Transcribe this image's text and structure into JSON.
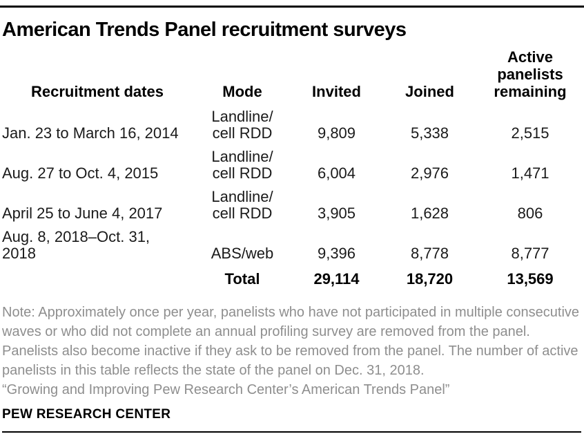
{
  "title": "American Trends Panel recruitment surveys",
  "table": {
    "columns": {
      "dates": "Recruitment dates",
      "mode": "Mode",
      "invited": "Invited",
      "joined": "Joined",
      "remaining": "Active\npanelists\nremaining"
    },
    "rows": [
      {
        "dates": "Jan. 23 to March 16, 2014",
        "mode": "Landline/\ncell RDD",
        "invited": "9,809",
        "joined": "5,338",
        "remaining": "2,515"
      },
      {
        "dates": "Aug. 27 to Oct. 4, 2015",
        "mode": "Landline/\ncell RDD",
        "invited": "6,004",
        "joined": "2,976",
        "remaining": "1,471"
      },
      {
        "dates": "April 25 to June 4, 2017",
        "mode": "Landline/\ncell RDD",
        "invited": "3,905",
        "joined": "1,628",
        "remaining": "806"
      },
      {
        "dates": "Aug. 8, 2018–Oct. 31, 2018",
        "mode": "ABS/web",
        "invited": "9,396",
        "joined": "8,778",
        "remaining": "8,777"
      }
    ],
    "total": {
      "label": "Total",
      "invited": "29,114",
      "joined": "18,720",
      "remaining": "13,569"
    }
  },
  "note": "Note: Approximately once per year, panelists who have not participated in multiple consecutive waves or who did not complete an annual profiling survey are removed from the panel. Panelists also become inactive if they ask to be removed from the panel. The number of active panelists in this table reflects the state of the panel on Dec. 31, 2018.",
  "source": "“Growing and Improving Pew Research Center’s American Trends Panel”",
  "footer": "PEW RESEARCH CENTER",
  "colors": {
    "text": "#1a1a1a",
    "bold_text": "#000000",
    "note_gray": "#8e8e8e",
    "rule": "#000000",
    "background": "#ffffff"
  },
  "chart_data": {
    "type": "table",
    "title": "American Trends Panel recruitment surveys",
    "columns": [
      "Recruitment dates",
      "Mode",
      "Invited",
      "Joined",
      "Active panelists remaining"
    ],
    "rows": [
      [
        "Jan. 23 to March 16, 2014",
        "Landline/cell RDD",
        9809,
        5338,
        2515
      ],
      [
        "Aug. 27 to Oct. 4, 2015",
        "Landline/cell RDD",
        6004,
        2976,
        1471
      ],
      [
        "April 25 to June 4, 2017",
        "Landline/cell RDD",
        3905,
        1628,
        806
      ],
      [
        "Aug. 8, 2018–Oct. 31, 2018",
        "ABS/web",
        9396,
        8778,
        8777
      ]
    ],
    "total": {
      "label": "Total",
      "invited": 29114,
      "joined": 18720,
      "remaining": 13569
    },
    "layout": {
      "numbers_alignment": "center",
      "header_bold": true,
      "total_bold": true
    }
  }
}
